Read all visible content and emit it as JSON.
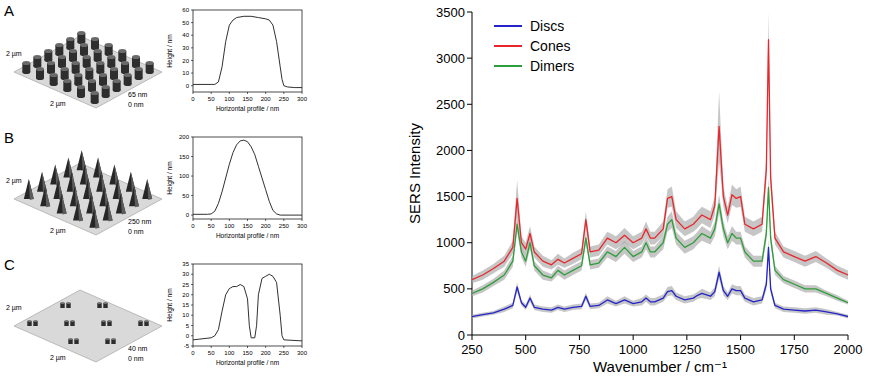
{
  "afm_images": [
    {
      "label": "A",
      "x_size": "2 µm",
      "y_size": "2 µm",
      "z_max": "65 nm",
      "z_min": "0 nm"
    },
    {
      "label": "B",
      "x_size": "2 µm",
      "y_size": "2 µm",
      "z_max": "250 nm",
      "z_min": "0 nm"
    },
    {
      "label": "C",
      "x_size": "2 µm",
      "y_size": "2 µm",
      "z_max": "40 nm",
      "z_min": "0 nm"
    }
  ],
  "chart_data": [
    {
      "type": "line",
      "x_label": "Horizontal profile / nm",
      "y_label": "Height / nm",
      "x": [
        0,
        50,
        60,
        70,
        80,
        90,
        100,
        110,
        120,
        140,
        160,
        180,
        200,
        210,
        220,
        230,
        240,
        245,
        250,
        260,
        280,
        300
      ],
      "values": [
        1,
        1,
        1,
        3,
        15,
        35,
        48,
        52,
        54,
        55,
        55,
        54,
        53,
        52,
        48,
        35,
        15,
        5,
        0,
        -1,
        -1.5,
        -1.5
      ],
      "color": "#1a1a1a",
      "xlim": [
        0,
        300
      ],
      "xticks": [
        0,
        50,
        100,
        150,
        200,
        250,
        300
      ],
      "ylim": [
        -5,
        60
      ],
      "yticks": [
        0,
        10,
        20,
        30,
        40,
        50,
        60
      ]
    },
    {
      "type": "line",
      "x_label": "Horizontal profile / nm",
      "y_label": "Height / nm",
      "x": [
        0,
        40,
        50,
        60,
        70,
        80,
        90,
        100,
        110,
        120,
        130,
        140,
        150,
        160,
        170,
        180,
        190,
        200,
        210,
        220,
        230,
        240,
        300
      ],
      "values": [
        2,
        2,
        3,
        10,
        30,
        60,
        95,
        130,
        160,
        180,
        190,
        192,
        188,
        175,
        155,
        125,
        95,
        65,
        35,
        12,
        3,
        0,
        0
      ],
      "color": "#1a1a1a",
      "xlim": [
        0,
        300
      ],
      "xticks": [
        0,
        50,
        100,
        150,
        200,
        250,
        300
      ],
      "ylim": [
        -10,
        200
      ],
      "yticks": [
        0,
        50,
        100,
        150,
        200
      ]
    },
    {
      "type": "line",
      "x_label": "Horizontal profile / nm",
      "y_label": "Height / nm",
      "x": [
        0,
        50,
        60,
        70,
        80,
        90,
        100,
        110,
        120,
        130,
        140,
        150,
        155,
        160,
        170,
        175,
        180,
        190,
        200,
        210,
        220,
        230,
        240,
        245,
        250,
        300
      ],
      "values": [
        -2,
        -1,
        0,
        3,
        12,
        20,
        23,
        24,
        24,
        25,
        24,
        18,
        5,
        -1,
        -1,
        5,
        20,
        28,
        29,
        30,
        29,
        26,
        10,
        0,
        -2,
        -2.5
      ],
      "color": "#1a1a1a",
      "xlim": [
        0,
        300
      ],
      "xticks": [
        0,
        50,
        100,
        150,
        200,
        250,
        300
      ],
      "ylim": [
        -5,
        35
      ],
      "yticks": [
        -5,
        0,
        5,
        10,
        15,
        20,
        25,
        30,
        35
      ]
    },
    {
      "type": "line",
      "x_label": "Wavenumber / cm⁻¹",
      "y_label": "SERS Intensity",
      "legend": "upper-left",
      "x": [
        250,
        300,
        350,
        400,
        440,
        460,
        480,
        500,
        520,
        540,
        580,
        620,
        650,
        680,
        720,
        760,
        780,
        800,
        840,
        880,
        920,
        960,
        1000,
        1040,
        1060,
        1080,
        1100,
        1140,
        1160,
        1180,
        1200,
        1240,
        1280,
        1300,
        1320,
        1360,
        1380,
        1400,
        1420,
        1440,
        1460,
        1480,
        1500,
        1520,
        1560,
        1600,
        1620,
        1630,
        1640,
        1660,
        1700,
        1750,
        1800,
        1850,
        1900,
        1950,
        2000
      ],
      "series": [
        {
          "name": "Discs",
          "color": "#2424c8",
          "values": [
            200,
            220,
            240,
            280,
            320,
            520,
            350,
            300,
            400,
            300,
            280,
            270,
            300,
            280,
            300,
            310,
            420,
            310,
            320,
            380,
            340,
            380,
            340,
            360,
            400,
            360,
            360,
            400,
            470,
            480,
            420,
            380,
            400,
            430,
            450,
            420,
            470,
            680,
            480,
            420,
            500,
            480,
            480,
            400,
            360,
            380,
            550,
            950,
            500,
            320,
            280,
            270,
            260,
            270,
            250,
            230,
            200
          ],
          "errors": [
            20,
            20,
            20,
            30,
            30,
            50,
            30,
            30,
            40,
            30,
            30,
            30,
            30,
            30,
            30,
            30,
            40,
            30,
            30,
            40,
            30,
            40,
            30,
            40,
            40,
            40,
            40,
            40,
            50,
            50,
            40,
            40,
            40,
            40,
            50,
            40,
            50,
            70,
            50,
            40,
            50,
            50,
            50,
            40,
            40,
            40,
            60,
            90,
            50,
            30,
            30,
            30,
            30,
            30,
            30,
            20,
            20
          ]
        },
        {
          "name": "Cones",
          "color": "#e8262b",
          "values": [
            600,
            650,
            720,
            800,
            950,
            1480,
            1000,
            930,
            1100,
            900,
            800,
            760,
            820,
            780,
            830,
            880,
            1250,
            900,
            920,
            1050,
            1000,
            1080,
            1000,
            1050,
            1150,
            1050,
            1050,
            1150,
            1480,
            1500,
            1250,
            1150,
            1200,
            1250,
            1300,
            1250,
            1400,
            2260,
            1500,
            1300,
            1520,
            1480,
            1500,
            1200,
            1150,
            1200,
            1800,
            3200,
            1700,
            1050,
            900,
            850,
            800,
            850,
            780,
            700,
            650
          ],
          "errors": [
            40,
            50,
            50,
            60,
            70,
            200,
            70,
            70,
            80,
            60,
            60,
            50,
            60,
            50,
            60,
            60,
            90,
            60,
            60,
            70,
            70,
            80,
            70,
            70,
            80,
            70,
            70,
            80,
            100,
            110,
            90,
            80,
            80,
            90,
            90,
            90,
            100,
            380,
            110,
            90,
            110,
            100,
            110,
            80,
            80,
            80,
            130,
            300,
            120,
            70,
            60,
            60,
            60,
            60,
            50,
            50,
            50
          ]
        },
        {
          "name": "Dimers",
          "color": "#2e9e3a",
          "values": [
            450,
            500,
            570,
            650,
            800,
            1200,
            900,
            800,
            1000,
            750,
            650,
            620,
            700,
            650,
            700,
            750,
            1050,
            760,
            780,
            900,
            850,
            950,
            850,
            900,
            1000,
            900,
            900,
            1000,
            1200,
            1250,
            1050,
            950,
            1000,
            1050,
            1100,
            1050,
            1150,
            1420,
            1150,
            1000,
            1100,
            1050,
            1050,
            900,
            800,
            800,
            1100,
            1600,
            1050,
            700,
            600,
            550,
            500,
            500,
            450,
            400,
            350
          ],
          "errors": [
            30,
            40,
            40,
            50,
            60,
            80,
            60,
            60,
            70,
            50,
            50,
            40,
            50,
            50,
            50,
            50,
            70,
            50,
            50,
            60,
            60,
            70,
            60,
            60,
            70,
            60,
            60,
            70,
            80,
            90,
            70,
            70,
            70,
            70,
            80,
            70,
            80,
            100,
            80,
            70,
            80,
            70,
            70,
            60,
            60,
            60,
            80,
            110,
            70,
            50,
            40,
            40,
            40,
            40,
            30,
            30,
            20
          ]
        }
      ],
      "xlim": [
        250,
        2000
      ],
      "xticks": [
        250,
        500,
        750,
        1000,
        1250,
        1500,
        1750,
        2000
      ],
      "ylim": [
        0,
        3500
      ],
      "yticks": [
        0,
        500,
        1000,
        1500,
        2000,
        2500,
        3000,
        3500
      ]
    }
  ]
}
